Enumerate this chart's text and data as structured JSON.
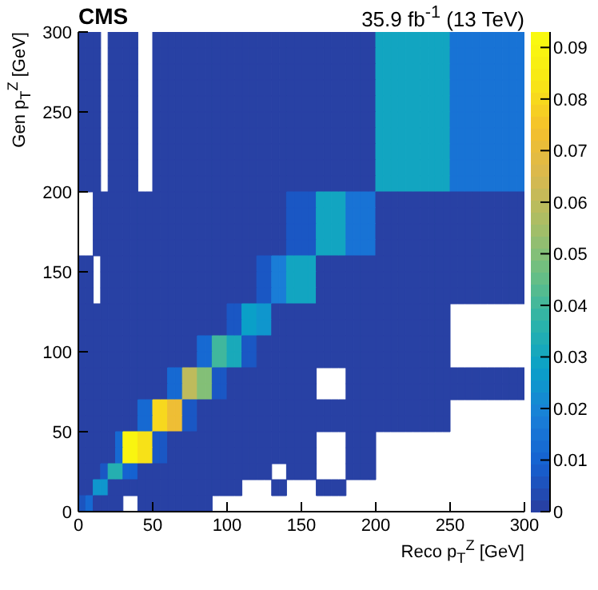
{
  "chart_data": {
    "type": "heatmap",
    "title": "CMS",
    "subtitle": "35.9 fb$^{-1}$ (13 TeV)",
    "xlabel": "Reco p$_{T}$$^{Z}$ [GeV]",
    "ylabel": "Gen p$_{T}$$^{Z}$ [GeV]",
    "cells": [
      [
        0.001,
        0.001,
        0.001,
        null,
        0.001,
        0.001,
        0.001,
        0.001,
        null,
        null,
        0.001,
        0.001,
        0.001,
        0.001,
        0.001,
        0.001,
        0.001,
        0.001,
        0.001,
        0.001,
        0.001,
        0.001,
        0.001,
        0.001,
        0.001,
        0.001,
        0.001,
        0.001,
        0.001,
        0.001,
        0.001,
        0.001,
        0.001,
        0.001,
        0.001,
        0.001,
        0.001,
        0.001,
        0.001,
        0.001,
        0.03,
        0.03,
        0.03,
        0.03,
        0.03,
        0.03,
        0.03,
        0.03,
        0.03,
        0.03,
        0.015,
        0.015,
        0.015,
        0.015,
        0.015,
        0.015,
        0.015,
        0.015,
        0.015,
        0.015
      ],
      [
        0.001,
        0.001,
        0.001,
        null,
        0.001,
        0.001,
        0.001,
        0.001,
        null,
        null,
        0.001,
        0.001,
        0.001,
        0.001,
        0.001,
        0.001,
        0.001,
        0.001,
        0.001,
        0.001,
        0.001,
        0.001,
        0.001,
        0.001,
        0.001,
        0.001,
        0.001,
        0.001,
        0.001,
        0.001,
        0.001,
        0.001,
        0.001,
        0.001,
        0.001,
        0.001,
        0.001,
        0.001,
        0.001,
        0.001,
        0.03,
        0.03,
        0.03,
        0.03,
        0.03,
        0.03,
        0.03,
        0.03,
        0.03,
        0.03,
        0.015,
        0.015,
        0.015,
        0.015,
        0.015,
        0.015,
        0.015,
        0.015,
        0.015,
        0.015
      ],
      [
        0.001,
        0.001,
        0.001,
        null,
        0.001,
        0.001,
        0.001,
        0.001,
        null,
        null,
        0.001,
        0.001,
        0.001,
        0.001,
        0.001,
        0.001,
        0.001,
        0.001,
        0.001,
        0.001,
        0.001,
        0.001,
        0.001,
        0.001,
        0.001,
        0.001,
        0.001,
        0.001,
        0.001,
        0.001,
        0.001,
        0.001,
        0.001,
        0.001,
        0.001,
        0.001,
        0.001,
        0.001,
        0.001,
        0.001,
        0.03,
        0.03,
        0.03,
        0.03,
        0.03,
        0.03,
        0.03,
        0.03,
        0.03,
        0.03,
        0.015,
        0.015,
        0.015,
        0.015,
        0.015,
        0.015,
        0.015,
        0.015,
        0.015,
        0.015
      ],
      [
        0.001,
        0.001,
        0.001,
        null,
        0.001,
        0.001,
        0.001,
        0.001,
        null,
        null,
        0.001,
        0.001,
        0.001,
        0.001,
        0.001,
        0.001,
        0.001,
        0.001,
        0.001,
        0.001,
        0.001,
        0.001,
        0.001,
        0.001,
        0.001,
        0.001,
        0.001,
        0.001,
        0.001,
        0.001,
        0.001,
        0.001,
        0.001,
        0.001,
        0.001,
        0.001,
        0.001,
        0.001,
        0.001,
        0.001,
        0.03,
        0.03,
        0.03,
        0.03,
        0.03,
        0.03,
        0.03,
        0.03,
        0.03,
        0.03,
        0.015,
        0.015,
        0.015,
        0.015,
        0.015,
        0.015,
        0.015,
        0.015,
        0.015,
        0.015
      ],
      [
        0.001,
        0.001,
        0.001,
        null,
        0.001,
        0.001,
        0.001,
        0.001,
        null,
        null,
        0.001,
        0.001,
        0.001,
        0.001,
        0.001,
        0.001,
        0.001,
        0.001,
        0.001,
        0.001,
        0.001,
        0.001,
        0.001,
        0.001,
        0.001,
        0.001,
        0.001,
        0.001,
        0.001,
        0.001,
        0.001,
        0.001,
        0.001,
        0.001,
        0.001,
        0.001,
        0.001,
        0.001,
        0.001,
        0.001,
        0.03,
        0.03,
        0.03,
        0.03,
        0.03,
        0.03,
        0.03,
        0.03,
        0.03,
        0.03,
        0.015,
        0.015,
        0.015,
        0.015,
        0.015,
        0.015,
        0.015,
        0.015,
        0.015,
        0.015
      ],
      [
        0.001,
        0.001,
        0.001,
        null,
        0.001,
        0.001,
        0.001,
        0.001,
        null,
        null,
        0.001,
        0.001,
        0.001,
        0.001,
        0.001,
        0.001,
        0.001,
        0.001,
        0.001,
        0.001,
        0.001,
        0.001,
        0.001,
        0.001,
        0.001,
        0.001,
        0.001,
        0.001,
        0.001,
        0.001,
        0.001,
        0.001,
        0.001,
        0.001,
        0.001,
        0.001,
        0.001,
        0.001,
        0.001,
        0.001,
        0.03,
        0.03,
        0.03,
        0.03,
        0.03,
        0.03,
        0.03,
        0.03,
        0.03,
        0.03,
        0.015,
        0.015,
        0.015,
        0.015,
        0.015,
        0.015,
        0.015,
        0.015,
        0.015,
        0.015
      ],
      [
        0.001,
        0.001,
        0.001,
        null,
        0.001,
        0.001,
        0.001,
        0.001,
        null,
        null,
        0.001,
        0.001,
        0.001,
        0.001,
        0.001,
        0.001,
        0.001,
        0.001,
        0.001,
        0.001,
        0.001,
        0.001,
        0.001,
        0.001,
        0.001,
        0.001,
        0.001,
        0.001,
        0.001,
        0.001,
        0.001,
        0.001,
        0.001,
        0.001,
        0.001,
        0.001,
        0.001,
        0.001,
        0.001,
        0.001,
        0.03,
        0.03,
        0.03,
        0.03,
        0.03,
        0.03,
        0.03,
        0.03,
        0.03,
        0.03,
        0.015,
        0.015,
        0.015,
        0.015,
        0.015,
        0.015,
        0.015,
        0.015,
        0.015,
        0.015
      ],
      [
        0.001,
        0.001,
        0.001,
        null,
        0.001,
        0.001,
        0.001,
        0.001,
        null,
        null,
        0.001,
        0.001,
        0.001,
        0.001,
        0.001,
        0.001,
        0.001,
        0.001,
        0.001,
        0.001,
        0.001,
        0.001,
        0.001,
        0.001,
        0.001,
        0.001,
        0.001,
        0.001,
        0.001,
        0.001,
        0.001,
        0.001,
        0.001,
        0.001,
        0.001,
        0.001,
        0.001,
        0.001,
        0.001,
        0.001,
        0.03,
        0.03,
        0.03,
        0.03,
        0.03,
        0.03,
        0.03,
        0.03,
        0.03,
        0.03,
        0.015,
        0.015,
        0.015,
        0.015,
        0.015,
        0.015,
        0.015,
        0.015,
        0.015,
        0.015
      ],
      [
        0.001,
        0.001,
        0.001,
        null,
        0.001,
        0.001,
        0.001,
        0.001,
        null,
        null,
        0.001,
        0.001,
        0.001,
        0.001,
        0.001,
        0.001,
        0.001,
        0.001,
        0.001,
        0.001,
        0.001,
        0.001,
        0.001,
        0.001,
        0.001,
        0.001,
        0.001,
        0.001,
        0.001,
        0.001,
        0.001,
        0.001,
        0.001,
        0.001,
        0.001,
        0.001,
        0.001,
        0.001,
        0.001,
        0.001,
        0.03,
        0.03,
        0.03,
        0.03,
        0.03,
        0.03,
        0.03,
        0.03,
        0.03,
        0.03,
        0.015,
        0.015,
        0.015,
        0.015,
        0.015,
        0.015,
        0.015,
        0.015,
        0.015,
        0.015
      ],
      [
        0.001,
        0.001,
        0.001,
        null,
        0.001,
        0.001,
        0.001,
        0.001,
        null,
        null,
        0.001,
        0.001,
        0.001,
        0.001,
        0.001,
        0.001,
        0.001,
        0.001,
        0.001,
        0.001,
        0.001,
        0.001,
        0.001,
        0.001,
        0.001,
        0.001,
        0.001,
        0.001,
        0.001,
        0.001,
        0.001,
        0.001,
        0.001,
        0.001,
        0.001,
        0.001,
        0.001,
        0.001,
        0.001,
        0.001,
        0.03,
        0.03,
        0.03,
        0.03,
        0.03,
        0.03,
        0.03,
        0.03,
        0.03,
        0.03,
        0.015,
        0.015,
        0.015,
        0.015,
        0.015,
        0.015,
        0.015,
        0.015,
        0.015,
        0.015
      ],
      [
        null,
        null,
        0.001,
        0.001,
        0.001,
        0.001,
        0.001,
        0.001,
        0.001,
        0.001,
        0.001,
        0.001,
        0.001,
        0.001,
        0.001,
        0.001,
        0.001,
        0.001,
        0.001,
        0.001,
        0.001,
        0.001,
        0.001,
        0.001,
        0.001,
        0.001,
        0.001,
        0.001,
        0.007,
        0.007,
        0.007,
        0.007,
        0.03,
        0.03,
        0.03,
        0.03,
        0.015,
        0.015,
        0.015,
        0.015,
        0.001,
        0.001,
        0.001,
        0.001,
        0.001,
        0.001,
        0.001,
        0.001,
        0.001,
        0.001,
        0.001,
        0.001,
        0.001,
        0.001,
        0.001,
        0.001,
        0.001,
        0.001,
        0.001,
        0.001
      ],
      [
        null,
        null,
        0.001,
        0.001,
        0.001,
        0.001,
        0.001,
        0.001,
        0.001,
        0.001,
        0.001,
        0.001,
        0.001,
        0.001,
        0.001,
        0.001,
        0.001,
        0.001,
        0.001,
        0.001,
        0.001,
        0.001,
        0.001,
        0.001,
        0.001,
        0.001,
        0.001,
        0.001,
        0.007,
        0.007,
        0.007,
        0.007,
        0.03,
        0.03,
        0.03,
        0.03,
        0.015,
        0.015,
        0.015,
        0.015,
        0.001,
        0.001,
        0.001,
        0.001,
        0.001,
        0.001,
        0.001,
        0.001,
        0.001,
        0.001,
        0.001,
        0.001,
        0.001,
        0.001,
        0.001,
        0.001,
        0.001,
        0.001,
        0.001,
        0.001
      ],
      [
        null,
        null,
        0.001,
        0.001,
        0.001,
        0.001,
        0.001,
        0.001,
        0.001,
        0.001,
        0.001,
        0.001,
        0.001,
        0.001,
        0.001,
        0.001,
        0.001,
        0.001,
        0.001,
        0.001,
        0.001,
        0.001,
        0.001,
        0.001,
        0.001,
        0.001,
        0.001,
        0.001,
        0.007,
        0.007,
        0.007,
        0.007,
        0.03,
        0.03,
        0.03,
        0.03,
        0.015,
        0.015,
        0.015,
        0.015,
        0.001,
        0.001,
        0.001,
        0.001,
        0.001,
        0.001,
        0.001,
        0.001,
        0.001,
        0.001,
        0.001,
        0.001,
        0.001,
        0.001,
        0.001,
        0.001,
        0.001,
        0.001,
        0.001,
        0.001
      ],
      [
        null,
        null,
        0.001,
        0.001,
        0.001,
        0.001,
        0.001,
        0.001,
        0.001,
        0.001,
        0.001,
        0.001,
        0.001,
        0.001,
        0.001,
        0.001,
        0.001,
        0.001,
        0.001,
        0.001,
        0.001,
        0.001,
        0.001,
        0.001,
        0.001,
        0.001,
        0.001,
        0.001,
        0.007,
        0.007,
        0.007,
        0.007,
        0.03,
        0.03,
        0.03,
        0.03,
        0.015,
        0.015,
        0.015,
        0.015,
        0.001,
        0.001,
        0.001,
        0.001,
        0.001,
        0.001,
        0.001,
        0.001,
        0.001,
        0.001,
        0.001,
        0.001,
        0.001,
        0.001,
        0.001,
        0.001,
        0.001,
        0.001,
        0.001,
        0.001
      ],
      [
        0.001,
        0.001,
        null,
        0.001,
        0.001,
        0.001,
        0.001,
        0.001,
        0.001,
        0.001,
        0.001,
        0.001,
        0.001,
        0.001,
        0.001,
        0.001,
        0.001,
        0.001,
        0.001,
        0.001,
        0.001,
        0.001,
        0.001,
        0.001,
        0.007,
        0.007,
        0.018,
        0.018,
        0.03,
        0.03,
        0.03,
        0.03,
        0.001,
        0.001,
        0.001,
        0.001,
        0.001,
        0.001,
        0.001,
        0.001,
        0.001,
        0.001,
        0.001,
        0.001,
        0.001,
        0.001,
        0.001,
        0.001,
        0.001,
        0.001,
        0.001,
        0.001,
        0.001,
        0.001,
        0.001,
        0.001,
        0.001,
        0.001,
        0.001,
        0.001
      ],
      [
        0.001,
        0.001,
        null,
        0.001,
        0.001,
        0.001,
        0.001,
        0.001,
        0.001,
        0.001,
        0.001,
        0.001,
        0.001,
        0.001,
        0.001,
        0.001,
        0.001,
        0.001,
        0.001,
        0.001,
        0.001,
        0.001,
        0.001,
        0.001,
        0.007,
        0.007,
        0.018,
        0.018,
        0.03,
        0.03,
        0.03,
        0.03,
        0.001,
        0.001,
        0.001,
        0.001,
        0.001,
        0.001,
        0.001,
        0.001,
        0.001,
        0.001,
        0.001,
        0.001,
        0.001,
        0.001,
        0.001,
        0.001,
        0.001,
        0.001,
        0.001,
        0.001,
        0.001,
        0.001,
        0.001,
        0.001,
        0.001,
        0.001,
        0.001,
        0.001
      ],
      [
        0.001,
        0.001,
        null,
        0.001,
        0.001,
        0.001,
        0.001,
        0.001,
        0.001,
        0.001,
        0.001,
        0.001,
        0.001,
        0.001,
        0.001,
        0.001,
        0.001,
        0.001,
        0.001,
        0.001,
        0.001,
        0.001,
        0.001,
        0.001,
        0.007,
        0.007,
        0.018,
        0.018,
        0.03,
        0.03,
        0.03,
        0.03,
        0.001,
        0.001,
        0.001,
        0.001,
        0.001,
        0.001,
        0.001,
        0.001,
        0.001,
        0.001,
        0.001,
        0.001,
        0.001,
        0.001,
        0.001,
        0.001,
        0.001,
        0.001,
        0.001,
        0.001,
        0.001,
        0.001,
        0.001,
        0.001,
        0.001,
        0.001,
        0.001,
        0.001
      ],
      [
        0.001,
        0.001,
        0.001,
        0.001,
        0.001,
        0.001,
        0.001,
        0.001,
        0.001,
        0.001,
        0.001,
        0.001,
        0.001,
        0.001,
        0.001,
        0.001,
        0.001,
        0.001,
        0.001,
        0.001,
        0.007,
        0.007,
        0.028,
        0.028,
        0.025,
        0.025,
        0.001,
        0.001,
        0.001,
        0.001,
        0.001,
        0.001,
        0.001,
        0.001,
        0.001,
        0.001,
        0.001,
        0.001,
        0.001,
        0.001,
        0.001,
        0.001,
        0.001,
        0.001,
        0.001,
        0.001,
        0.001,
        0.001,
        0.001,
        0.001,
        null,
        null,
        null,
        null,
        null,
        null,
        null,
        null,
        null,
        null
      ],
      [
        0.001,
        0.001,
        0.001,
        0.001,
        0.001,
        0.001,
        0.001,
        0.001,
        0.001,
        0.001,
        0.001,
        0.001,
        0.001,
        0.001,
        0.001,
        0.001,
        0.001,
        0.001,
        0.001,
        0.001,
        0.007,
        0.007,
        0.028,
        0.028,
        0.025,
        0.025,
        0.001,
        0.001,
        0.001,
        0.001,
        0.001,
        0.001,
        0.001,
        0.001,
        0.001,
        0.001,
        0.001,
        0.001,
        0.001,
        0.001,
        0.001,
        0.001,
        0.001,
        0.001,
        0.001,
        0.001,
        0.001,
        0.001,
        0.001,
        0.001,
        null,
        null,
        null,
        null,
        null,
        null,
        null,
        null,
        null,
        null
      ],
      [
        0.001,
        0.001,
        0.001,
        0.001,
        0.001,
        0.001,
        0.001,
        0.001,
        0.001,
        0.001,
        0.001,
        0.001,
        0.001,
        0.001,
        0.001,
        0.001,
        0.012,
        0.012,
        0.04,
        0.04,
        0.032,
        0.032,
        0.007,
        0.007,
        0.001,
        0.001,
        0.001,
        0.001,
        0.001,
        0.001,
        0.001,
        0.001,
        0.001,
        0.001,
        0.001,
        0.001,
        0.001,
        0.001,
        0.001,
        0.001,
        0.001,
        0.001,
        0.001,
        0.001,
        0.001,
        0.001,
        0.001,
        0.001,
        0.001,
        0.001,
        null,
        null,
        null,
        null,
        null,
        null,
        null,
        null,
        null,
        null
      ],
      [
        0.001,
        0.001,
        0.001,
        0.001,
        0.001,
        0.001,
        0.001,
        0.001,
        0.001,
        0.001,
        0.001,
        0.001,
        0.001,
        0.001,
        0.001,
        0.001,
        0.012,
        0.012,
        0.04,
        0.04,
        0.032,
        0.032,
        0.007,
        0.007,
        0.001,
        0.001,
        0.001,
        0.001,
        0.001,
        0.001,
        0.001,
        0.001,
        0.001,
        0.001,
        0.001,
        0.001,
        0.001,
        0.001,
        0.001,
        0.001,
        0.001,
        0.001,
        0.001,
        0.001,
        0.001,
        0.001,
        0.001,
        0.001,
        0.001,
        0.001,
        null,
        null,
        null,
        null,
        null,
        null,
        null,
        null,
        null,
        null
      ],
      [
        0.001,
        0.001,
        0.001,
        0.001,
        0.001,
        0.001,
        0.001,
        0.001,
        0.001,
        0.001,
        0.001,
        0.001,
        0.012,
        0.012,
        0.06,
        0.06,
        0.05,
        0.05,
        0.007,
        0.007,
        0.001,
        0.001,
        0.001,
        0.001,
        0.001,
        0.001,
        0.001,
        0.001,
        0.001,
        0.001,
        0.001,
        0.001,
        null,
        null,
        null,
        null,
        0.001,
        0.001,
        0.001,
        0.001,
        0.001,
        0.001,
        0.001,
        0.001,
        0.001,
        0.001,
        0.001,
        0.001,
        0.001,
        0.001,
        0.001,
        0.001,
        0.001,
        0.001,
        0.001,
        0.001,
        0.001,
        0.001,
        0.001,
        0.001
      ],
      [
        0.001,
        0.001,
        0.001,
        0.001,
        0.001,
        0.001,
        0.001,
        0.001,
        0.001,
        0.001,
        0.001,
        0.001,
        0.012,
        0.012,
        0.06,
        0.06,
        0.05,
        0.05,
        0.007,
        0.007,
        0.001,
        0.001,
        0.001,
        0.001,
        0.001,
        0.001,
        0.001,
        0.001,
        0.001,
        0.001,
        0.001,
        0.001,
        null,
        null,
        null,
        null,
        0.001,
        0.001,
        0.001,
        0.001,
        0.001,
        0.001,
        0.001,
        0.001,
        0.001,
        0.001,
        0.001,
        0.001,
        0.001,
        0.001,
        0.001,
        0.001,
        0.001,
        0.001,
        0.001,
        0.001,
        0.001,
        0.001,
        0.001,
        0.001
      ],
      [
        0.001,
        0.001,
        0.001,
        0.001,
        0.001,
        0.001,
        0.001,
        0.001,
        0.012,
        0.012,
        0.08,
        0.08,
        0.072,
        0.072,
        0.007,
        0.007,
        0.001,
        0.001,
        0.001,
        0.001,
        0.001,
        0.001,
        0.001,
        0.001,
        0.001,
        0.001,
        0.001,
        0.001,
        0.001,
        0.001,
        0.001,
        0.001,
        0.001,
        0.001,
        0.001,
        0.001,
        0.001,
        0.001,
        0.001,
        0.001,
        0.001,
        0.001,
        0.001,
        0.001,
        0.001,
        0.001,
        0.001,
        0.001,
        0.001,
        0.001,
        null,
        null,
        null,
        null,
        null,
        null,
        null,
        null,
        null,
        null
      ],
      [
        0.001,
        0.001,
        0.001,
        0.001,
        0.001,
        0.001,
        0.001,
        0.001,
        0.012,
        0.012,
        0.08,
        0.08,
        0.072,
        0.072,
        0.007,
        0.007,
        0.001,
        0.001,
        0.001,
        0.001,
        0.001,
        0.001,
        0.001,
        0.001,
        0.001,
        0.001,
        0.001,
        0.001,
        0.001,
        0.001,
        0.001,
        0.001,
        0.001,
        0.001,
        0.001,
        0.001,
        0.001,
        0.001,
        0.001,
        0.001,
        0.001,
        0.001,
        0.001,
        0.001,
        0.001,
        0.001,
        0.001,
        0.001,
        0.001,
        0.001,
        null,
        null,
        null,
        null,
        null,
        null,
        null,
        null,
        null,
        null
      ],
      [
        0.001,
        0.001,
        0.001,
        0.001,
        0.001,
        0.012,
        0.09,
        0.09,
        0.082,
        0.082,
        0.007,
        0.007,
        0.001,
        0.001,
        0.001,
        0.001,
        0.001,
        0.001,
        0.001,
        0.001,
        0.001,
        0.001,
        0.001,
        0.001,
        0.001,
        0.001,
        0.001,
        0.001,
        0.001,
        0.001,
        0.001,
        0.001,
        null,
        null,
        null,
        null,
        0.001,
        0.001,
        0.001,
        0.001,
        null,
        null,
        null,
        null,
        null,
        null,
        null,
        null,
        null,
        null,
        null,
        null,
        null,
        null,
        null,
        null,
        null,
        null,
        null,
        null
      ],
      [
        0.001,
        0.001,
        0.001,
        0.001,
        0.001,
        0.012,
        0.09,
        0.09,
        0.082,
        0.082,
        0.007,
        0.007,
        0.001,
        0.001,
        0.001,
        0.001,
        0.001,
        0.001,
        0.001,
        0.001,
        0.001,
        0.001,
        0.001,
        0.001,
        0.001,
        0.001,
        0.001,
        0.001,
        0.001,
        0.001,
        0.001,
        0.001,
        null,
        null,
        null,
        null,
        0.001,
        0.001,
        0.001,
        0.001,
        null,
        null,
        null,
        null,
        null,
        null,
        null,
        null,
        null,
        null,
        null,
        null,
        null,
        null,
        null,
        null,
        null,
        null,
        null,
        null
      ],
      [
        0.001,
        0.001,
        0.001,
        0.007,
        0.035,
        0.035,
        0.01,
        0.01,
        0.001,
        0.001,
        0.001,
        0.001,
        0.001,
        0.001,
        0.001,
        0.001,
        0.001,
        0.001,
        0.001,
        0.001,
        0.001,
        0.001,
        0.001,
        0.001,
        0.001,
        0.001,
        null,
        null,
        0.001,
        0.001,
        0.001,
        0.001,
        null,
        null,
        null,
        null,
        0.001,
        0.001,
        0.001,
        0.001,
        null,
        null,
        null,
        null,
        null,
        null,
        null,
        null,
        null,
        null,
        null,
        null,
        null,
        null,
        null,
        null,
        null,
        null,
        null,
        null
      ],
      [
        0.001,
        0.001,
        0.025,
        0.025,
        0.001,
        0.001,
        0.001,
        0.001,
        0.001,
        0.001,
        0.001,
        0.001,
        0.001,
        0.001,
        0.001,
        0.001,
        0.001,
        0.001,
        0.001,
        0.001,
        0.001,
        0.001,
        null,
        null,
        null,
        null,
        0.001,
        0.001,
        null,
        null,
        null,
        null,
        0.001,
        0.001,
        0.001,
        0.001,
        null,
        null,
        null,
        null,
        null,
        null,
        null,
        null,
        null,
        null,
        null,
        null,
        null,
        null,
        null,
        null,
        null,
        null,
        null,
        null,
        null,
        null,
        null,
        null
      ],
      [
        0.006,
        0.012,
        0.001,
        0.001,
        0.001,
        0.001,
        null,
        null,
        0.001,
        0.001,
        0.001,
        0.001,
        0.001,
        0.001,
        0.001,
        0.001,
        0.001,
        0.001,
        null,
        null,
        null,
        null,
        null,
        null,
        null,
        null,
        null,
        null,
        null,
        null,
        null,
        null,
        null,
        null,
        null,
        null,
        null,
        null,
        null,
        null,
        null,
        null,
        null,
        null,
        null,
        null,
        null,
        null,
        null,
        null,
        null,
        null,
        null,
        null,
        null,
        null,
        null,
        null,
        null,
        null
      ]
    ],
    "xlim": [
      0,
      300
    ],
    "xticks": [
      0,
      50,
      100,
      150,
      200,
      250,
      300
    ],
    "ylim": [
      0,
      300
    ],
    "yticks": [
      0,
      50,
      100,
      150,
      200,
      250,
      300
    ],
    "clim": [
      0,
      0.093
    ],
    "cticks": [
      0,
      0.01,
      0.02,
      0.03,
      0.04,
      0.05,
      0.06,
      0.07,
      0.08,
      0.09
    ]
  }
}
